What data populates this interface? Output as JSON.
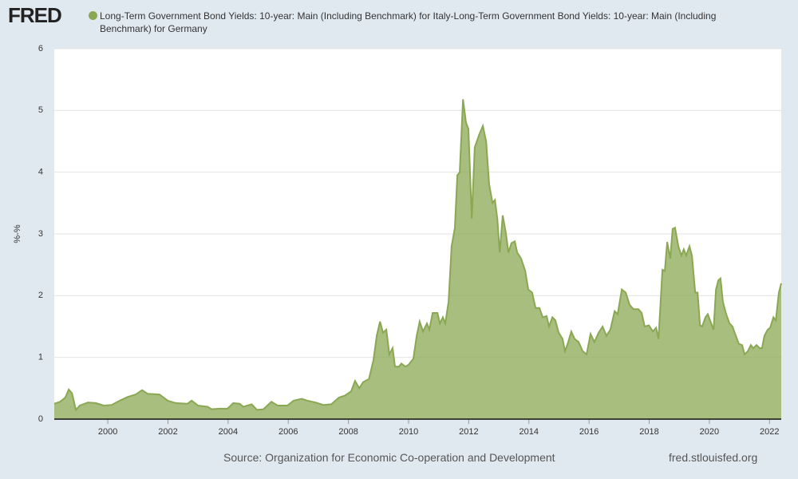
{
  "chart_data": {
    "type": "area",
    "logo": "FRED",
    "series": [
      {
        "name": "Long-Term Government Bond Yields: 10-year: Main (Including Benchmark) for Italy-Long-Term Government Bond Yields: 10-year: Main (Including Benchmark) for Germany",
        "color": "#8aa853",
        "values": [
          0.25,
          0.28,
          0.35,
          0.48,
          0.42,
          0.15,
          0.22,
          0.27,
          0.26,
          0.22,
          0.23,
          0.3,
          0.36,
          0.4,
          0.47,
          0.41,
          0.4,
          0.3,
          0.26,
          0.25,
          0.3,
          0.22,
          0.2,
          0.16,
          0.17,
          0.17,
          0.26,
          0.25,
          0.2,
          0.24,
          0.15,
          0.16,
          0.28,
          0.22,
          0.22,
          0.3,
          0.33,
          0.3,
          0.27,
          0.23,
          0.24,
          0.35,
          0.38,
          0.45,
          0.62,
          0.5,
          0.6,
          0.65,
          0.95,
          1.35,
          1.58,
          1.4,
          1.45,
          1.05,
          1.15,
          0.85,
          0.85,
          0.9,
          0.85,
          0.88,
          0.98,
          1.35,
          1.58,
          1.42,
          1.55,
          1.45,
          1.72,
          1.72,
          1.55,
          1.65,
          1.55,
          1.9,
          2.8,
          3.1,
          3.95,
          4.0,
          5.18,
          4.8,
          4.7,
          3.25,
          4.4,
          4.6,
          4.75,
          4.5,
          3.8,
          3.5,
          3.55,
          3.25,
          2.7,
          3.3,
          3.0,
          2.7,
          2.85,
          2.88,
          2.7,
          2.6,
          2.4,
          2.1,
          2.05,
          1.8,
          1.8,
          1.65,
          1.67,
          1.5,
          1.65,
          1.6,
          1.4,
          1.3,
          1.1,
          1.25,
          1.42,
          1.3,
          1.25,
          1.1,
          1.05,
          1.38,
          1.25,
          1.4,
          1.5,
          1.35,
          1.45,
          1.75,
          1.7,
          2.1,
          2.05,
          1.85,
          1.78,
          1.78,
          1.72,
          1.5,
          1.52,
          1.42,
          1.48,
          1.3,
          2.42,
          2.4,
          2.87,
          2.6,
          3.08,
          3.1,
          2.8,
          2.65,
          2.75,
          2.65,
          2.8,
          2.65,
          2.05,
          2.05,
          1.52,
          1.5,
          1.65,
          1.7,
          1.55,
          1.45,
          2.1,
          2.25,
          2.28,
          1.9,
          1.7,
          1.55,
          1.5,
          1.35,
          1.22,
          1.2,
          1.05,
          1.1,
          1.2,
          1.15,
          1.2,
          1.15,
          1.15,
          1.35,
          1.45,
          1.48,
          1.65,
          1.6,
          2.05,
          2.2
        ]
      }
    ],
    "x": [
      1998.22,
      1998.41,
      1998.59,
      1998.7,
      1998.81,
      1998.94,
      1999.07,
      1999.34,
      1999.6,
      1999.87,
      2000.13,
      2000.4,
      2000.66,
      2000.93,
      2001.14,
      2001.33,
      2001.72,
      2001.99,
      2002.26,
      2002.65,
      2002.79,
      2003.0,
      2003.32,
      2003.45,
      2003.71,
      2003.98,
      2004.17,
      2004.38,
      2004.51,
      2004.78,
      2004.96,
      2005.17,
      2005.44,
      2005.65,
      2005.97,
      2006.18,
      2006.45,
      2006.63,
      2006.9,
      2007.16,
      2007.43,
      2007.69,
      2007.88,
      2008.09,
      2008.22,
      2008.36,
      2008.49,
      2008.68,
      2008.83,
      2008.94,
      2009.05,
      2009.15,
      2009.26,
      2009.36,
      2009.47,
      2009.55,
      2009.68,
      2009.76,
      2009.9,
      2010.0,
      2010.16,
      2010.27,
      2010.37,
      2010.48,
      2010.61,
      2010.69,
      2010.8,
      2010.96,
      2011.04,
      2011.14,
      2011.22,
      2011.33,
      2011.43,
      2011.54,
      2011.62,
      2011.7,
      2011.81,
      2011.91,
      2011.99,
      2012.1,
      2012.2,
      2012.34,
      2012.47,
      2012.58,
      2012.68,
      2012.79,
      2012.87,
      2012.95,
      2013.03,
      2013.13,
      2013.24,
      2013.32,
      2013.42,
      2013.53,
      2013.61,
      2013.74,
      2013.88,
      2013.98,
      2014.11,
      2014.22,
      2014.35,
      2014.46,
      2014.59,
      2014.67,
      2014.78,
      2014.88,
      2014.99,
      2015.12,
      2015.2,
      2015.31,
      2015.41,
      2015.52,
      2015.65,
      2015.79,
      2015.92,
      2016.05,
      2016.18,
      2016.32,
      2016.45,
      2016.58,
      2016.71,
      2016.85,
      2016.95,
      2017.09,
      2017.22,
      2017.35,
      2017.48,
      2017.64,
      2017.75,
      2017.85,
      2017.99,
      2018.12,
      2018.23,
      2018.31,
      2018.44,
      2018.52,
      2018.6,
      2018.7,
      2018.78,
      2018.86,
      2018.97,
      2019.07,
      2019.15,
      2019.23,
      2019.34,
      2019.42,
      2019.53,
      2019.61,
      2019.69,
      2019.76,
      2019.87,
      2019.95,
      2020.06,
      2020.14,
      2020.22,
      2020.3,
      2020.37,
      2020.45,
      2020.56,
      2020.67,
      2020.77,
      2020.88,
      2020.98,
      2021.09,
      2021.17,
      2021.28,
      2021.38,
      2021.46,
      2021.57,
      2021.67,
      2021.75,
      2021.83,
      2021.94,
      2022.02,
      2022.13,
      2022.21,
      2022.31,
      2022.39
    ],
    "xlim": [
      1998.22,
      2022.39
    ],
    "xticks": [
      2000,
      2002,
      2004,
      2006,
      2008,
      2010,
      2012,
      2014,
      2016,
      2018,
      2020,
      2022
    ],
    "ylim": [
      0,
      6
    ],
    "yticks": [
      0,
      1,
      2,
      3,
      4,
      5,
      6
    ],
    "ylabel": "%-%",
    "grid": true,
    "source": "Source: Organization for Economic Co-operation and Development",
    "credit": "fred.stlouisfed.org"
  }
}
